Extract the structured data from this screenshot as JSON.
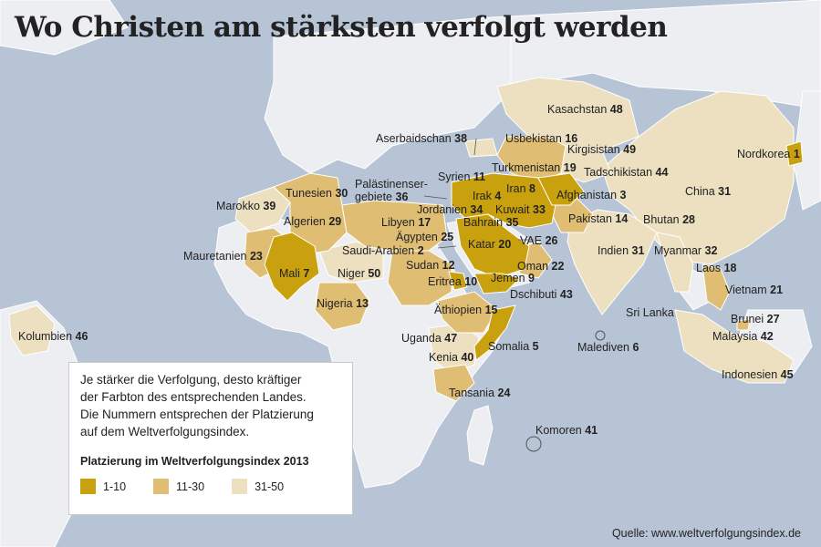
{
  "title": "Wo Christen am stärksten verfolgt werden",
  "source": "Quelle: www.weltverfolgungsindex.de",
  "legend": {
    "text_lines": [
      "Je stärker die Verfolgung, desto kräftiger",
      "der Farbton des entsprechenden Landes.",
      "Die Nummern entsprechen der Platzierung",
      "auf dem Weltverfolgungsindex."
    ],
    "title": "Platzierung im Weltverfolgungsindex 2013",
    "items": [
      {
        "label": "1-10",
        "color": "#c9a10f"
      },
      {
        "label": "11-30",
        "color": "#dfbd73"
      },
      {
        "label": "31-50",
        "color": "#ede0c0"
      }
    ]
  },
  "colors": {
    "water": "#b7c4d6",
    "land": "#eceef2",
    "border": "#ffffff",
    "tier1": "#c9a10f",
    "tier2": "#dfbd73",
    "tier3": "#ede0c0"
  },
  "countries": [
    {
      "name": "Nordkorea",
      "rank": "1"
    },
    {
      "name": "Saudi-Arabien",
      "rank": "2"
    },
    {
      "name": "Afghanistan",
      "rank": "3"
    },
    {
      "name": "Irak",
      "rank": "4"
    },
    {
      "name": "Somalia",
      "rank": "5"
    },
    {
      "name": "Malediven",
      "rank": "6"
    },
    {
      "name": "Mali",
      "rank": "7"
    },
    {
      "name": "Iran",
      "rank": "8"
    },
    {
      "name": "Jemen",
      "rank": "9"
    },
    {
      "name": "Eritrea",
      "rank": "10"
    },
    {
      "name": "Syrien",
      "rank": "11"
    },
    {
      "name": "Sudan",
      "rank": "12"
    },
    {
      "name": "Nigeria",
      "rank": "13"
    },
    {
      "name": "Pakistan",
      "rank": "14"
    },
    {
      "name": "Äthiopien",
      "rank": "15"
    },
    {
      "name": "Usbekistan",
      "rank": "16"
    },
    {
      "name": "Libyen",
      "rank": "17"
    },
    {
      "name": "Laos",
      "rank": "18"
    },
    {
      "name": "Turkmenistan",
      "rank": "19"
    },
    {
      "name": "Katar",
      "rank": "20"
    },
    {
      "name": "Vietnam",
      "rank": "21"
    },
    {
      "name": "Oman",
      "rank": "22"
    },
    {
      "name": "Mauretanien",
      "rank": "23"
    },
    {
      "name": "Tansania",
      "rank": "24"
    },
    {
      "name": "Ägypten",
      "rank": "25"
    },
    {
      "name": "VAE",
      "rank": "26"
    },
    {
      "name": "Brunei",
      "rank": "27"
    },
    {
      "name": "Bhutan",
      "rank": "28"
    },
    {
      "name": "Algerien",
      "rank": "29"
    },
    {
      "name": "Tunesien",
      "rank": "30"
    },
    {
      "name": "Indien",
      "rank": "31"
    },
    {
      "name": "China",
      "rank": "31"
    },
    {
      "name": "Myanmar",
      "rank": "32"
    },
    {
      "name": "Kuwait",
      "rank": "33"
    },
    {
      "name": "Jordanien",
      "rank": "34"
    },
    {
      "name": "Bahrain",
      "rank": "35"
    },
    {
      "name": "Palästinenser-\ngebiete",
      "rank": "36"
    },
    {
      "name": "Aserbaidschan",
      "rank": "38"
    },
    {
      "name": "Marokko",
      "rank": "39"
    },
    {
      "name": "Kenia",
      "rank": "40"
    },
    {
      "name": "Komoren",
      "rank": "41"
    },
    {
      "name": "Malaysia",
      "rank": "42"
    },
    {
      "name": "Dschibuti",
      "rank": "43"
    },
    {
      "name": "Tadschikistan",
      "rank": "44"
    },
    {
      "name": "Indonesien",
      "rank": "45"
    },
    {
      "name": "Kolumbien",
      "rank": "46"
    },
    {
      "name": "Uganda",
      "rank": "47"
    },
    {
      "name": "Kasachstan",
      "rank": "48"
    },
    {
      "name": "Kirgisistan",
      "rank": "49"
    },
    {
      "name": "Niger",
      "rank": "50"
    },
    {
      "name": "Sri Lanka",
      "rank": ""
    }
  ]
}
